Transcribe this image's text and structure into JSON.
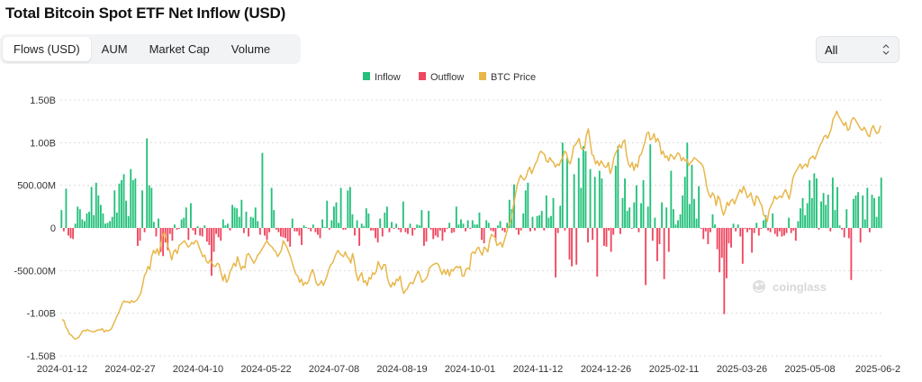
{
  "title": "Total Bitcoin Spot ETF Net Inflow (USD)",
  "tabs": [
    {
      "label": "Flows (USD)",
      "active": true
    },
    {
      "label": "AUM",
      "active": false
    },
    {
      "label": "Market Cap",
      "active": false
    },
    {
      "label": "Volume",
      "active": false
    }
  ],
  "range_select": {
    "value": "All"
  },
  "watermark": "coinglass",
  "colors": {
    "inflow": "#23c07a",
    "outflow": "#f0475f",
    "price": "#e8b74a",
    "grid": "#dcdcdc",
    "axis_text": "#333333"
  },
  "chart_data": {
    "type": "bar",
    "legend": [
      "Inflow",
      "Outflow",
      "BTC Price"
    ],
    "legend_position": "top-center",
    "y_axis": {
      "ticks": [
        "1.50B",
        "1.00B",
        "500.00M",
        "0",
        "-500.00M",
        "-1.00B",
        "-1.50B"
      ],
      "range_millions": [
        -1500,
        1500
      ]
    },
    "x_axis": {
      "ticks": [
        "2024-01-12",
        "2024-02-27",
        "2024-04-10",
        "2024-05-22",
        "2024-07-08",
        "2024-08-19",
        "2024-10-01",
        "2024-11-12",
        "2024-12-26",
        "2025-02-11",
        "2025-03-26",
        "2025-05-08",
        "2025-06-2"
      ],
      "start": "2024-01-12",
      "end": "2025-06-02"
    },
    "grid": true,
    "price_range_usd": [
      35000,
      115000
    ],
    "bar_unit": "million USD",
    "bars": [
      210,
      -40,
      460,
      -90,
      -120,
      -130,
      50,
      250,
      220,
      100,
      80,
      170,
      190,
      480,
      150,
      530,
      380,
      270,
      170,
      50,
      60,
      80,
      130,
      440,
      180,
      520,
      560,
      630,
      320,
      140,
      690,
      560,
      580,
      -210,
      -150,
      440,
      -50,
      1050,
      500,
      470,
      70,
      -100,
      110,
      -280,
      -330,
      -170,
      -260,
      -70,
      -150,
      40,
      -20,
      -10,
      100,
      120,
      240,
      -140,
      290,
      -30,
      -80,
      20,
      -90,
      -100,
      30,
      -160,
      -200,
      -560,
      -280,
      -70,
      -110,
      -150,
      100,
      30,
      50,
      -30,
      270,
      240,
      230,
      130,
      330,
      -60,
      190,
      -100,
      130,
      120,
      240,
      80,
      -80,
      880,
      -90,
      -140,
      -50,
      470,
      210,
      -20,
      -50,
      -100,
      -110,
      -120,
      -160,
      -220,
      110,
      -40,
      -40,
      -90,
      -200,
      30,
      10,
      -10,
      -40,
      40,
      -50,
      -80,
      -120,
      100,
      10,
      320,
      -20,
      90,
      250,
      300,
      60,
      470,
      -20,
      -20,
      440,
      480,
      160,
      -90,
      90,
      -210,
      50,
      20,
      230,
      170,
      -30,
      -30,
      -120,
      -170,
      110,
      -100,
      180,
      250,
      -50,
      70,
      -10,
      50,
      -20,
      -50,
      310,
      -50,
      -70,
      50,
      -90,
      -20,
      40,
      30,
      210,
      -210,
      -160,
      200,
      -20,
      -130,
      -90,
      -110,
      -30,
      -150,
      -50,
      -10,
      60,
      -60,
      -50,
      250,
      40,
      100,
      50,
      -40,
      90,
      -10,
      90,
      40,
      40,
      180,
      -140,
      -180,
      90,
      60,
      -30,
      -40,
      -150,
      30,
      80,
      -30,
      -50,
      60,
      330,
      220,
      510,
      -20,
      -80,
      -30,
      170,
      440,
      530,
      -40,
      130,
      -30,
      140,
      150,
      200,
      -30,
      380,
      120,
      140,
      350,
      -580,
      -60,
      260,
      1000,
      -30,
      820,
      -370,
      -450,
      630,
      -430,
      820,
      470,
      960,
      900,
      -170,
      690,
      -140,
      600,
      -570,
      670,
      580,
      -210,
      -220,
      -30,
      -280,
      -80,
      730,
      960,
      -70,
      350,
      580,
      200,
      240,
      -10,
      300,
      500,
      -50,
      290,
      560,
      -670,
      250,
      980,
      -150,
      120,
      -390,
      -190,
      300,
      -600,
      240,
      -280,
      670,
      220,
      40,
      90,
      160,
      380,
      600,
      1000,
      280,
      740,
      340,
      110,
      490,
      -10,
      -130,
      -40,
      -190,
      -50,
      160,
      40,
      -250,
      -520,
      -350,
      -1010,
      -590,
      -180,
      -230,
      50,
      -40,
      40,
      -100,
      -420,
      -10,
      -50,
      -20,
      -290,
      -60,
      60,
      -90,
      -10,
      90,
      150,
      -30,
      -50,
      170,
      -70,
      -100,
      -40,
      -100,
      -90,
      -60,
      120,
      -60,
      -30,
      -150,
      80,
      230,
      350,
      150,
      290,
      560,
      350,
      640,
      580,
      -20,
      310,
      410,
      270,
      390,
      -40,
      590,
      210,
      480,
      30,
      -20,
      -110,
      220,
      -120,
      -610,
      340,
      380,
      420,
      -170,
      380,
      100,
      470,
      -50,
      390,
      350,
      130,
      370,
      590
    ],
    "btc_price": [
      46400,
      46000,
      44000,
      43200,
      41800,
      41500,
      40800,
      40200,
      40500,
      40800,
      41600,
      42600,
      43000,
      42800,
      43200,
      42800,
      42700,
      42500,
      42600,
      43000,
      43200,
      43100,
      43500,
      42500,
      43000,
      42800,
      43000,
      43500,
      44800,
      46000,
      47500,
      48500,
      50000,
      51500,
      52200,
      51800,
      52000,
      51500,
      52300,
      51800,
      52000,
      52500,
      53500,
      54500,
      57000,
      60000,
      61000,
      63000,
      62000,
      66000,
      68000,
      67000,
      68500,
      66500,
      70000,
      72500,
      73500,
      71500,
      69000,
      67500,
      65000,
      67500,
      68200,
      67000,
      69500,
      70000,
      70500,
      71000,
      70000,
      69000,
      69500,
      70500,
      70000,
      71000,
      70800,
      69000,
      67500,
      66000,
      66500,
      64500,
      64000,
      65000,
      64000,
      63000,
      63000,
      64000,
      63500,
      61000,
      58500,
      60500,
      58000,
      59000,
      61500,
      62500,
      64000,
      63000,
      66000,
      64000,
      62000,
      63000,
      62500,
      66500,
      67000,
      66000,
      65000,
      64000,
      65000,
      66500,
      67000,
      68000,
      69000,
      70000,
      71000,
      70000,
      69500,
      69000,
      68000,
      67500,
      66000,
      67000,
      68000,
      71000,
      70000,
      69000,
      67500,
      66000,
      64000,
      62000,
      60500,
      60000,
      58000,
      59000,
      57000,
      58000,
      57500,
      58500,
      60500,
      62000,
      60500,
      58000,
      57000,
      57500,
      58500,
      57000,
      58500,
      60000,
      62000,
      63500,
      64000,
      65500,
      67000,
      68000,
      67000,
      66500,
      66000,
      67500,
      66000,
      65500,
      64000,
      67000,
      64500,
      60500,
      58500,
      60000,
      61000,
      58000,
      58500,
      57000,
      59500,
      59000,
      61000,
      60500,
      61500,
      64500,
      63000,
      62000,
      63500,
      63500,
      59500,
      57500,
      56500,
      58000,
      57000,
      59000,
      58500,
      60000,
      56500,
      54500,
      55500,
      56000,
      57500,
      58000,
      57500,
      59000,
      60500,
      61500,
      60000,
      58000,
      58500,
      59000,
      60000,
      62500,
      63000,
      63500,
      63800,
      64000,
      63500,
      62000,
      60500,
      62000,
      60500,
      62000,
      60000,
      62000,
      61500,
      62500,
      63000,
      62500,
      63000,
      60000,
      60000,
      62000,
      62500,
      62000,
      67000,
      67500,
      67000,
      68500,
      69000,
      67500,
      66500,
      69000,
      68500,
      67500,
      71000,
      73000,
      72500,
      72000,
      69500,
      70000,
      70500,
      69000,
      71000,
      73000,
      75000,
      76500,
      78000,
      82000,
      85000,
      88000,
      90000,
      91500,
      90500,
      90000,
      91000,
      93000,
      94000,
      92000,
      93500,
      95000,
      96000,
      98000,
      99000,
      98500,
      98000,
      96000,
      95500,
      97000,
      96000,
      95500,
      94000,
      95000,
      94500,
      96000,
      97000,
      99000,
      98500,
      96000,
      95000,
      97000,
      100500,
      101000,
      102000,
      103000,
      100000,
      99500,
      100000,
      104000,
      106000,
      102000,
      98000,
      97500,
      95000,
      96000,
      94500,
      96000,
      95000,
      94000,
      94000,
      95500,
      92000,
      93500,
      97000,
      98500,
      99500,
      101000,
      100000,
      102000,
      102500,
      97500,
      95000,
      94000,
      95500,
      93000,
      95000,
      94000,
      97500,
      98000,
      100000,
      102000,
      104500,
      105000,
      102500,
      103000,
      104500,
      102000,
      103000,
      101500,
      98000,
      99000,
      97000,
      97500,
      96000,
      98000,
      97500,
      96500,
      97500,
      98500,
      98000,
      96000,
      97000,
      96000,
      96500,
      94500,
      95500,
      96000,
      97000,
      96500,
      96000,
      95500,
      95000,
      94000,
      91000,
      87500,
      85500,
      84500,
      86000,
      85000,
      82000,
      85000,
      84000,
      81000,
      79000,
      80500,
      83000,
      82000,
      83500,
      84000,
      82500,
      84000,
      85500,
      87000,
      86000,
      88000,
      86500,
      84500,
      85000,
      86000,
      83500,
      82000,
      85000,
      84500,
      83000,
      82000,
      79000,
      78500,
      77000,
      80500,
      82000,
      83000,
      85000,
      84000,
      84500,
      85000,
      84500,
      86000,
      87000,
      85500,
      84000,
      87000,
      90500,
      92000,
      93000,
      94000,
      95000,
      93500,
      94500,
      95000,
      94000,
      96500,
      97000,
      97500,
      96500,
      98000,
      99500,
      101000,
      102000,
      103500,
      104000,
      103000,
      104500,
      106000,
      109000,
      110000,
      111500,
      110000,
      109000,
      108000,
      107000,
      108000,
      105500,
      106000,
      108500,
      109500,
      109000,
      108000,
      107000,
      106000,
      105500,
      106500,
      105500,
      104000,
      103500,
      106000,
      107000,
      105500,
      104500,
      105000,
      107000
    ]
  }
}
